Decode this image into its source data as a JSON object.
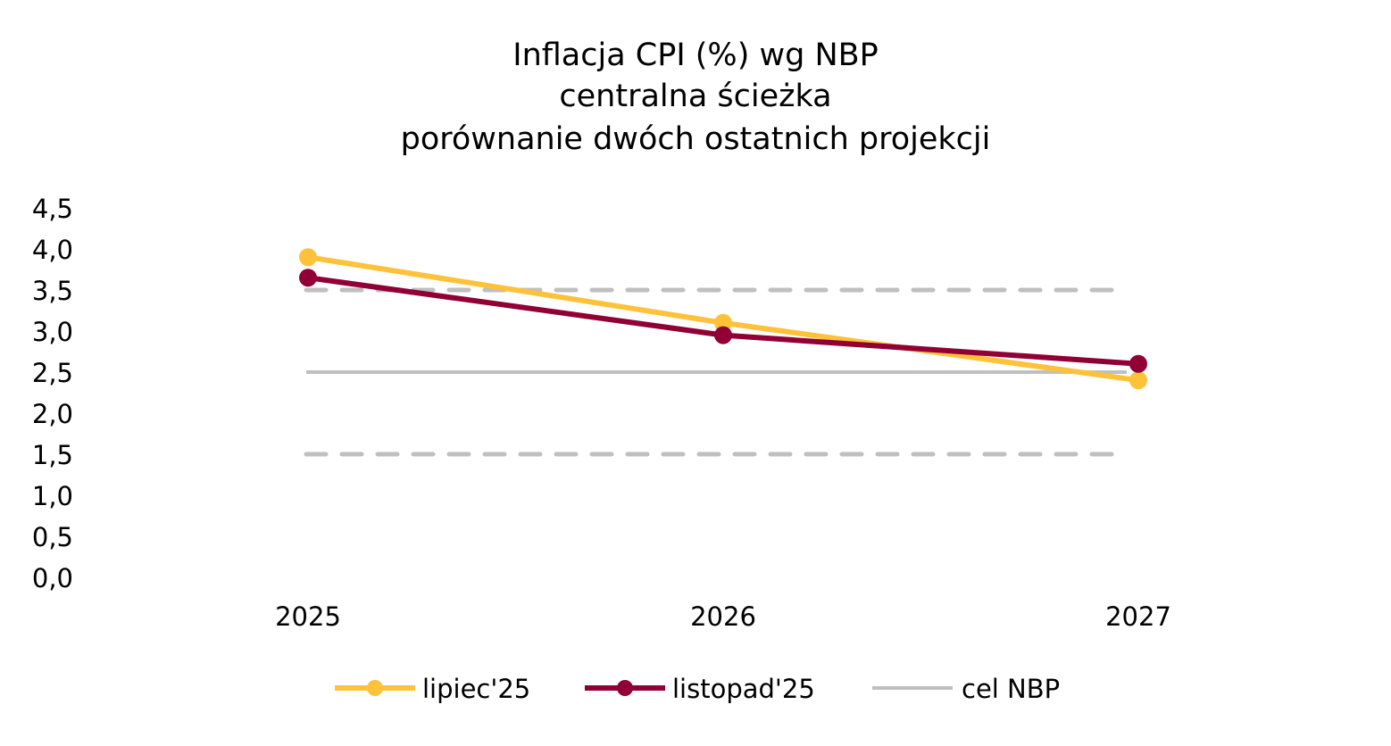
{
  "chart_data": {
    "type": "line",
    "title": [
      "Inflacja CPI (%) wg NBP",
      "centralna ścieżka",
      "porównanie dwóch ostatnich projekcji"
    ],
    "categories": [
      "2025",
      "2026",
      "2027"
    ],
    "yticks": [
      "0,0",
      "0,5",
      "1,0",
      "1,5",
      "2,0",
      "2,5",
      "3,0",
      "3,5",
      "4,0",
      "4,5"
    ],
    "ylim": [
      0,
      4.5
    ],
    "grid": false,
    "legend_position": "bottom",
    "series": [
      {
        "name": "lipiec'25",
        "values": [
          3.9,
          3.1,
          2.4
        ],
        "color": "#FDC13A",
        "markers": true
      },
      {
        "name": "listopad'25",
        "values": [
          3.65,
          2.95,
          2.6
        ],
        "color": "#900034",
        "markers": true
      },
      {
        "name": "cel NBP",
        "values": [
          2.5,
          2.5,
          2.5
        ],
        "color": "#BFBFBF",
        "markers": false
      }
    ],
    "tolerance_band": {
      "lower": 1.5,
      "upper": 3.5,
      "color": "#BFBFBF",
      "style": "dashed"
    }
  }
}
